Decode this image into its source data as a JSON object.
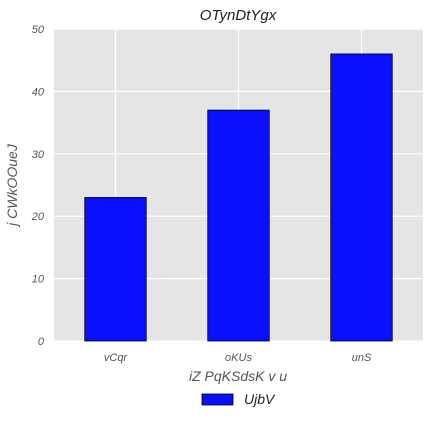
{
  "chart_data": {
    "type": "bar",
    "title": "OTynDtYgx",
    "xlabel": "iZ PqKSdsK v u",
    "ylabel": "j CWkOOueJ",
    "categories": [
      "vCqr",
      "oKUs",
      "unS"
    ],
    "series": [
      {
        "name": "UjbV",
        "values": [
          23,
          37,
          46
        ],
        "color": "#0a10ff"
      }
    ],
    "ylim": [
      0,
      50
    ],
    "yticks": [
      0,
      10,
      20,
      30,
      40,
      50
    ],
    "grid": true,
    "legend": "bottom-center",
    "colors": {
      "plot_background": "#e5e5e5",
      "grid": "#ffffff",
      "bar_edge": "#000000"
    }
  }
}
